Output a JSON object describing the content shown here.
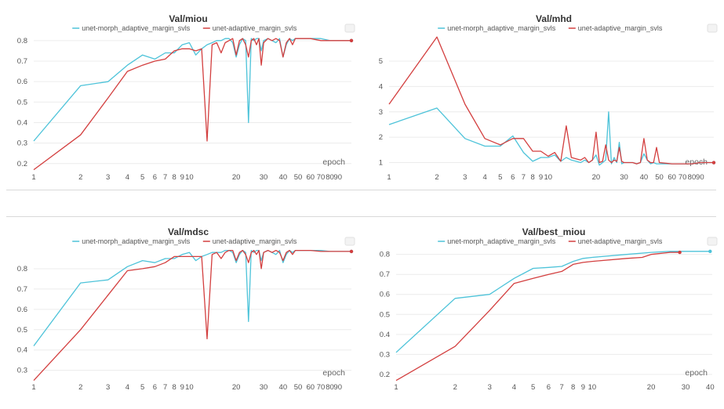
{
  "colors": {
    "series_a": "#4dc3d9",
    "series_b": "#d33f3f"
  },
  "chart_data": [
    {
      "type": "line",
      "title": "Val/miou",
      "xlabel": "epoch",
      "ylabel": "",
      "xscale": "log",
      "xlim": [
        1,
        110
      ],
      "ylim": [
        0.18,
        0.83
      ],
      "xticks": [
        "1",
        "2",
        "3",
        "4",
        "5",
        "6",
        "7",
        "8",
        "9",
        "10",
        "20",
        "30",
        "40",
        "50",
        "60",
        "70",
        "80",
        "90"
      ],
      "yticks": [
        "0.2",
        "0.3",
        "0.4",
        "0.5",
        "0.6",
        "0.7",
        "0.8"
      ],
      "legend_position": "top-center",
      "series": [
        {
          "name": "unet-morph_adaptive_margin_svls",
          "color": "#4dc3d9",
          "x": [
            1,
            2,
            3,
            4,
            5,
            6,
            7,
            8,
            9,
            10,
            11,
            12,
            13,
            14,
            15,
            16,
            17,
            18,
            19,
            20,
            21,
            22,
            23,
            24,
            25,
            26,
            27,
            28,
            29,
            30,
            32,
            34,
            36,
            38,
            40,
            42,
            44,
            46,
            48,
            50,
            60,
            70,
            80,
            90,
            100,
            110
          ],
          "y": [
            0.31,
            0.58,
            0.6,
            0.68,
            0.73,
            0.71,
            0.74,
            0.74,
            0.78,
            0.79,
            0.73,
            0.76,
            0.78,
            0.79,
            0.8,
            0.8,
            0.81,
            0.81,
            0.79,
            0.72,
            0.78,
            0.81,
            0.8,
            0.4,
            0.81,
            0.8,
            0.81,
            0.81,
            0.75,
            0.8,
            0.81,
            0.8,
            0.79,
            0.81,
            0.72,
            0.78,
            0.81,
            0.8,
            0.81,
            0.81,
            0.81,
            0.81,
            0.8,
            0.8,
            0.8,
            0.8
          ]
        },
        {
          "name": "unet-adaptive_margin_svls",
          "color": "#d33f3f",
          "x": [
            1,
            2,
            3,
            4,
            5,
            6,
            7,
            8,
            9,
            10,
            11,
            12,
            13,
            14,
            15,
            16,
            17,
            18,
            19,
            20,
            21,
            22,
            23,
            24,
            25,
            26,
            27,
            28,
            29,
            30,
            32,
            34,
            36,
            38,
            40,
            42,
            44,
            46,
            48,
            50,
            60,
            70,
            80,
            90,
            100,
            110
          ],
          "y": [
            0.17,
            0.34,
            0.52,
            0.65,
            0.68,
            0.7,
            0.71,
            0.75,
            0.76,
            0.76,
            0.75,
            0.76,
            0.31,
            0.78,
            0.79,
            0.74,
            0.79,
            0.8,
            0.81,
            0.73,
            0.8,
            0.81,
            0.78,
            0.72,
            0.8,
            0.81,
            0.78,
            0.81,
            0.68,
            0.79,
            0.81,
            0.8,
            0.81,
            0.8,
            0.72,
            0.79,
            0.81,
            0.78,
            0.81,
            0.81,
            0.81,
            0.8,
            0.8,
            0.8,
            0.8,
            0.8
          ]
        }
      ]
    },
    {
      "type": "line",
      "title": "Val/mhd",
      "xlabel": "epoch",
      "ylabel": "",
      "xscale": "log",
      "xlim": [
        1,
        110
      ],
      "ylim": [
        0.8,
        6.05
      ],
      "xticks": [
        "1",
        "2",
        "3",
        "4",
        "5",
        "6",
        "7",
        "8",
        "9",
        "10",
        "20",
        "30",
        "40",
        "50",
        "60",
        "70",
        "80",
        "90"
      ],
      "yticks": [
        "1",
        "2",
        "3",
        "4",
        "5"
      ],
      "legend_position": "top-center",
      "series": [
        {
          "name": "unet-morph_adaptive_margin_svls",
          "color": "#4dc3d9",
          "x": [
            1,
            2,
            3,
            4,
            5,
            6,
            7,
            8,
            9,
            10,
            11,
            12,
            13,
            14,
            15,
            16,
            17,
            18,
            19,
            20,
            21,
            22,
            23,
            24,
            25,
            26,
            27,
            28,
            29,
            30,
            32,
            34,
            36,
            38,
            40,
            42,
            44,
            46,
            48,
            50,
            60,
            70,
            80,
            90,
            100,
            110
          ],
          "y": [
            2.5,
            3.15,
            1.95,
            1.65,
            1.65,
            2.05,
            1.4,
            1.05,
            1.2,
            1.2,
            1.3,
            1.05,
            1.2,
            1.1,
            1.05,
            1.0,
            1.1,
            1.0,
            1.1,
            1.3,
            0.9,
            1.0,
            1.1,
            3.0,
            0.95,
            1.2,
            1.0,
            1.8,
            0.95,
            1.0,
            1.0,
            1.0,
            0.95,
            1.0,
            1.35,
            1.1,
            0.95,
            1.0,
            0.95,
            0.95,
            0.95,
            0.95,
            0.95,
            1.0,
            1.0,
            1.0
          ]
        },
        {
          "name": "unet-adaptive_margin_svls",
          "color": "#d33f3f",
          "x": [
            1,
            2,
            3,
            4,
            5,
            6,
            7,
            8,
            9,
            10,
            11,
            12,
            13,
            14,
            15,
            16,
            17,
            18,
            19,
            20,
            21,
            22,
            23,
            24,
            25,
            26,
            27,
            28,
            29,
            30,
            32,
            34,
            36,
            38,
            40,
            42,
            44,
            46,
            48,
            50,
            60,
            70,
            80,
            90,
            100,
            110
          ],
          "y": [
            3.3,
            5.95,
            3.3,
            1.95,
            1.7,
            1.95,
            1.95,
            1.45,
            1.45,
            1.25,
            1.4,
            1.05,
            2.45,
            1.2,
            1.15,
            1.1,
            1.2,
            1.0,
            1.1,
            2.2,
            1.0,
            1.05,
            1.7,
            1.1,
            1.0,
            1.1,
            1.05,
            1.6,
            1.05,
            1.0,
            1.0,
            1.0,
            0.95,
            1.0,
            1.95,
            1.1,
            1.0,
            1.0,
            1.6,
            1.0,
            0.95,
            0.95,
            0.95,
            1.0,
            1.0,
            1.0
          ]
        }
      ]
    },
    {
      "type": "line",
      "title": "Val/mdsc",
      "xlabel": "epoch",
      "ylabel": "",
      "xscale": "log",
      "xlim": [
        1,
        110
      ],
      "ylim": [
        0.26,
        0.9
      ],
      "xticks": [
        "1",
        "2",
        "3",
        "4",
        "5",
        "6",
        "7",
        "8",
        "9",
        "10",
        "20",
        "30",
        "40",
        "50",
        "60",
        "70",
        "80",
        "90"
      ],
      "yticks": [
        "0.3",
        "0.4",
        "0.5",
        "0.6",
        "0.7",
        "0.8"
      ],
      "legend_position": "top-center",
      "series": [
        {
          "name": "unet-morph_adaptive_margin_svls",
          "color": "#4dc3d9",
          "x": [
            1,
            2,
            3,
            4,
            5,
            6,
            7,
            8,
            9,
            10,
            11,
            12,
            13,
            14,
            15,
            16,
            17,
            18,
            19,
            20,
            21,
            22,
            23,
            24,
            25,
            26,
            27,
            28,
            29,
            30,
            32,
            34,
            36,
            38,
            40,
            42,
            44,
            46,
            48,
            50,
            60,
            70,
            80,
            90,
            100,
            110
          ],
          "y": [
            0.42,
            0.73,
            0.745,
            0.81,
            0.84,
            0.83,
            0.85,
            0.85,
            0.87,
            0.88,
            0.84,
            0.86,
            0.87,
            0.88,
            0.88,
            0.88,
            0.89,
            0.89,
            0.88,
            0.83,
            0.87,
            0.89,
            0.88,
            0.54,
            0.89,
            0.88,
            0.89,
            0.89,
            0.84,
            0.88,
            0.89,
            0.88,
            0.87,
            0.89,
            0.83,
            0.87,
            0.89,
            0.88,
            0.89,
            0.89,
            0.89,
            0.89,
            0.885,
            0.885,
            0.885,
            0.885
          ]
        },
        {
          "name": "unet-adaptive_margin_svls",
          "color": "#d33f3f",
          "x": [
            1,
            2,
            3,
            4,
            5,
            6,
            7,
            8,
            9,
            10,
            11,
            12,
            13,
            14,
            15,
            16,
            17,
            18,
            19,
            20,
            21,
            22,
            23,
            24,
            25,
            26,
            27,
            28,
            29,
            30,
            32,
            34,
            36,
            38,
            40,
            42,
            44,
            46,
            48,
            50,
            60,
            70,
            80,
            90,
            100,
            110
          ],
          "y": [
            0.25,
            0.5,
            0.67,
            0.79,
            0.8,
            0.81,
            0.83,
            0.86,
            0.86,
            0.86,
            0.86,
            0.86,
            0.455,
            0.87,
            0.88,
            0.85,
            0.88,
            0.89,
            0.89,
            0.84,
            0.88,
            0.89,
            0.87,
            0.83,
            0.88,
            0.89,
            0.87,
            0.89,
            0.8,
            0.88,
            0.89,
            0.88,
            0.89,
            0.88,
            0.84,
            0.88,
            0.89,
            0.87,
            0.89,
            0.89,
            0.89,
            0.885,
            0.885,
            0.885,
            0.885,
            0.885
          ]
        }
      ]
    },
    {
      "type": "line",
      "title": "Val/best_miou",
      "xlabel": "epoch",
      "ylabel": "",
      "xscale": "log",
      "xlim": [
        1,
        41
      ],
      "ylim": [
        0.18,
        0.83
      ],
      "xticks": [
        "1",
        "2",
        "3",
        "4",
        "5",
        "6",
        "7",
        "8",
        "9",
        "10",
        "20",
        "30",
        "40"
      ],
      "yticks": [
        "0.2",
        "0.3",
        "0.4",
        "0.5",
        "0.6",
        "0.7",
        "0.8"
      ],
      "legend_position": "top-center",
      "series": [
        {
          "name": "unet-morph_adaptive_margin_svls",
          "color": "#4dc3d9",
          "x": [
            1,
            2,
            3,
            4,
            5,
            6,
            7,
            8,
            9,
            10,
            15,
            20,
            25,
            30,
            40
          ],
          "y": [
            0.31,
            0.58,
            0.6,
            0.68,
            0.73,
            0.735,
            0.74,
            0.765,
            0.78,
            0.785,
            0.8,
            0.81,
            0.815,
            0.815,
            0.815
          ]
        },
        {
          "name": "unet-adaptive_margin_svls",
          "color": "#d33f3f",
          "x": [
            1,
            2,
            3,
            4,
            5,
            6,
            7,
            8,
            9,
            10,
            15,
            18,
            20,
            25,
            28
          ],
          "y": [
            0.17,
            0.34,
            0.52,
            0.655,
            0.68,
            0.7,
            0.715,
            0.75,
            0.76,
            0.765,
            0.78,
            0.785,
            0.8,
            0.81,
            0.81
          ]
        }
      ]
    }
  ]
}
